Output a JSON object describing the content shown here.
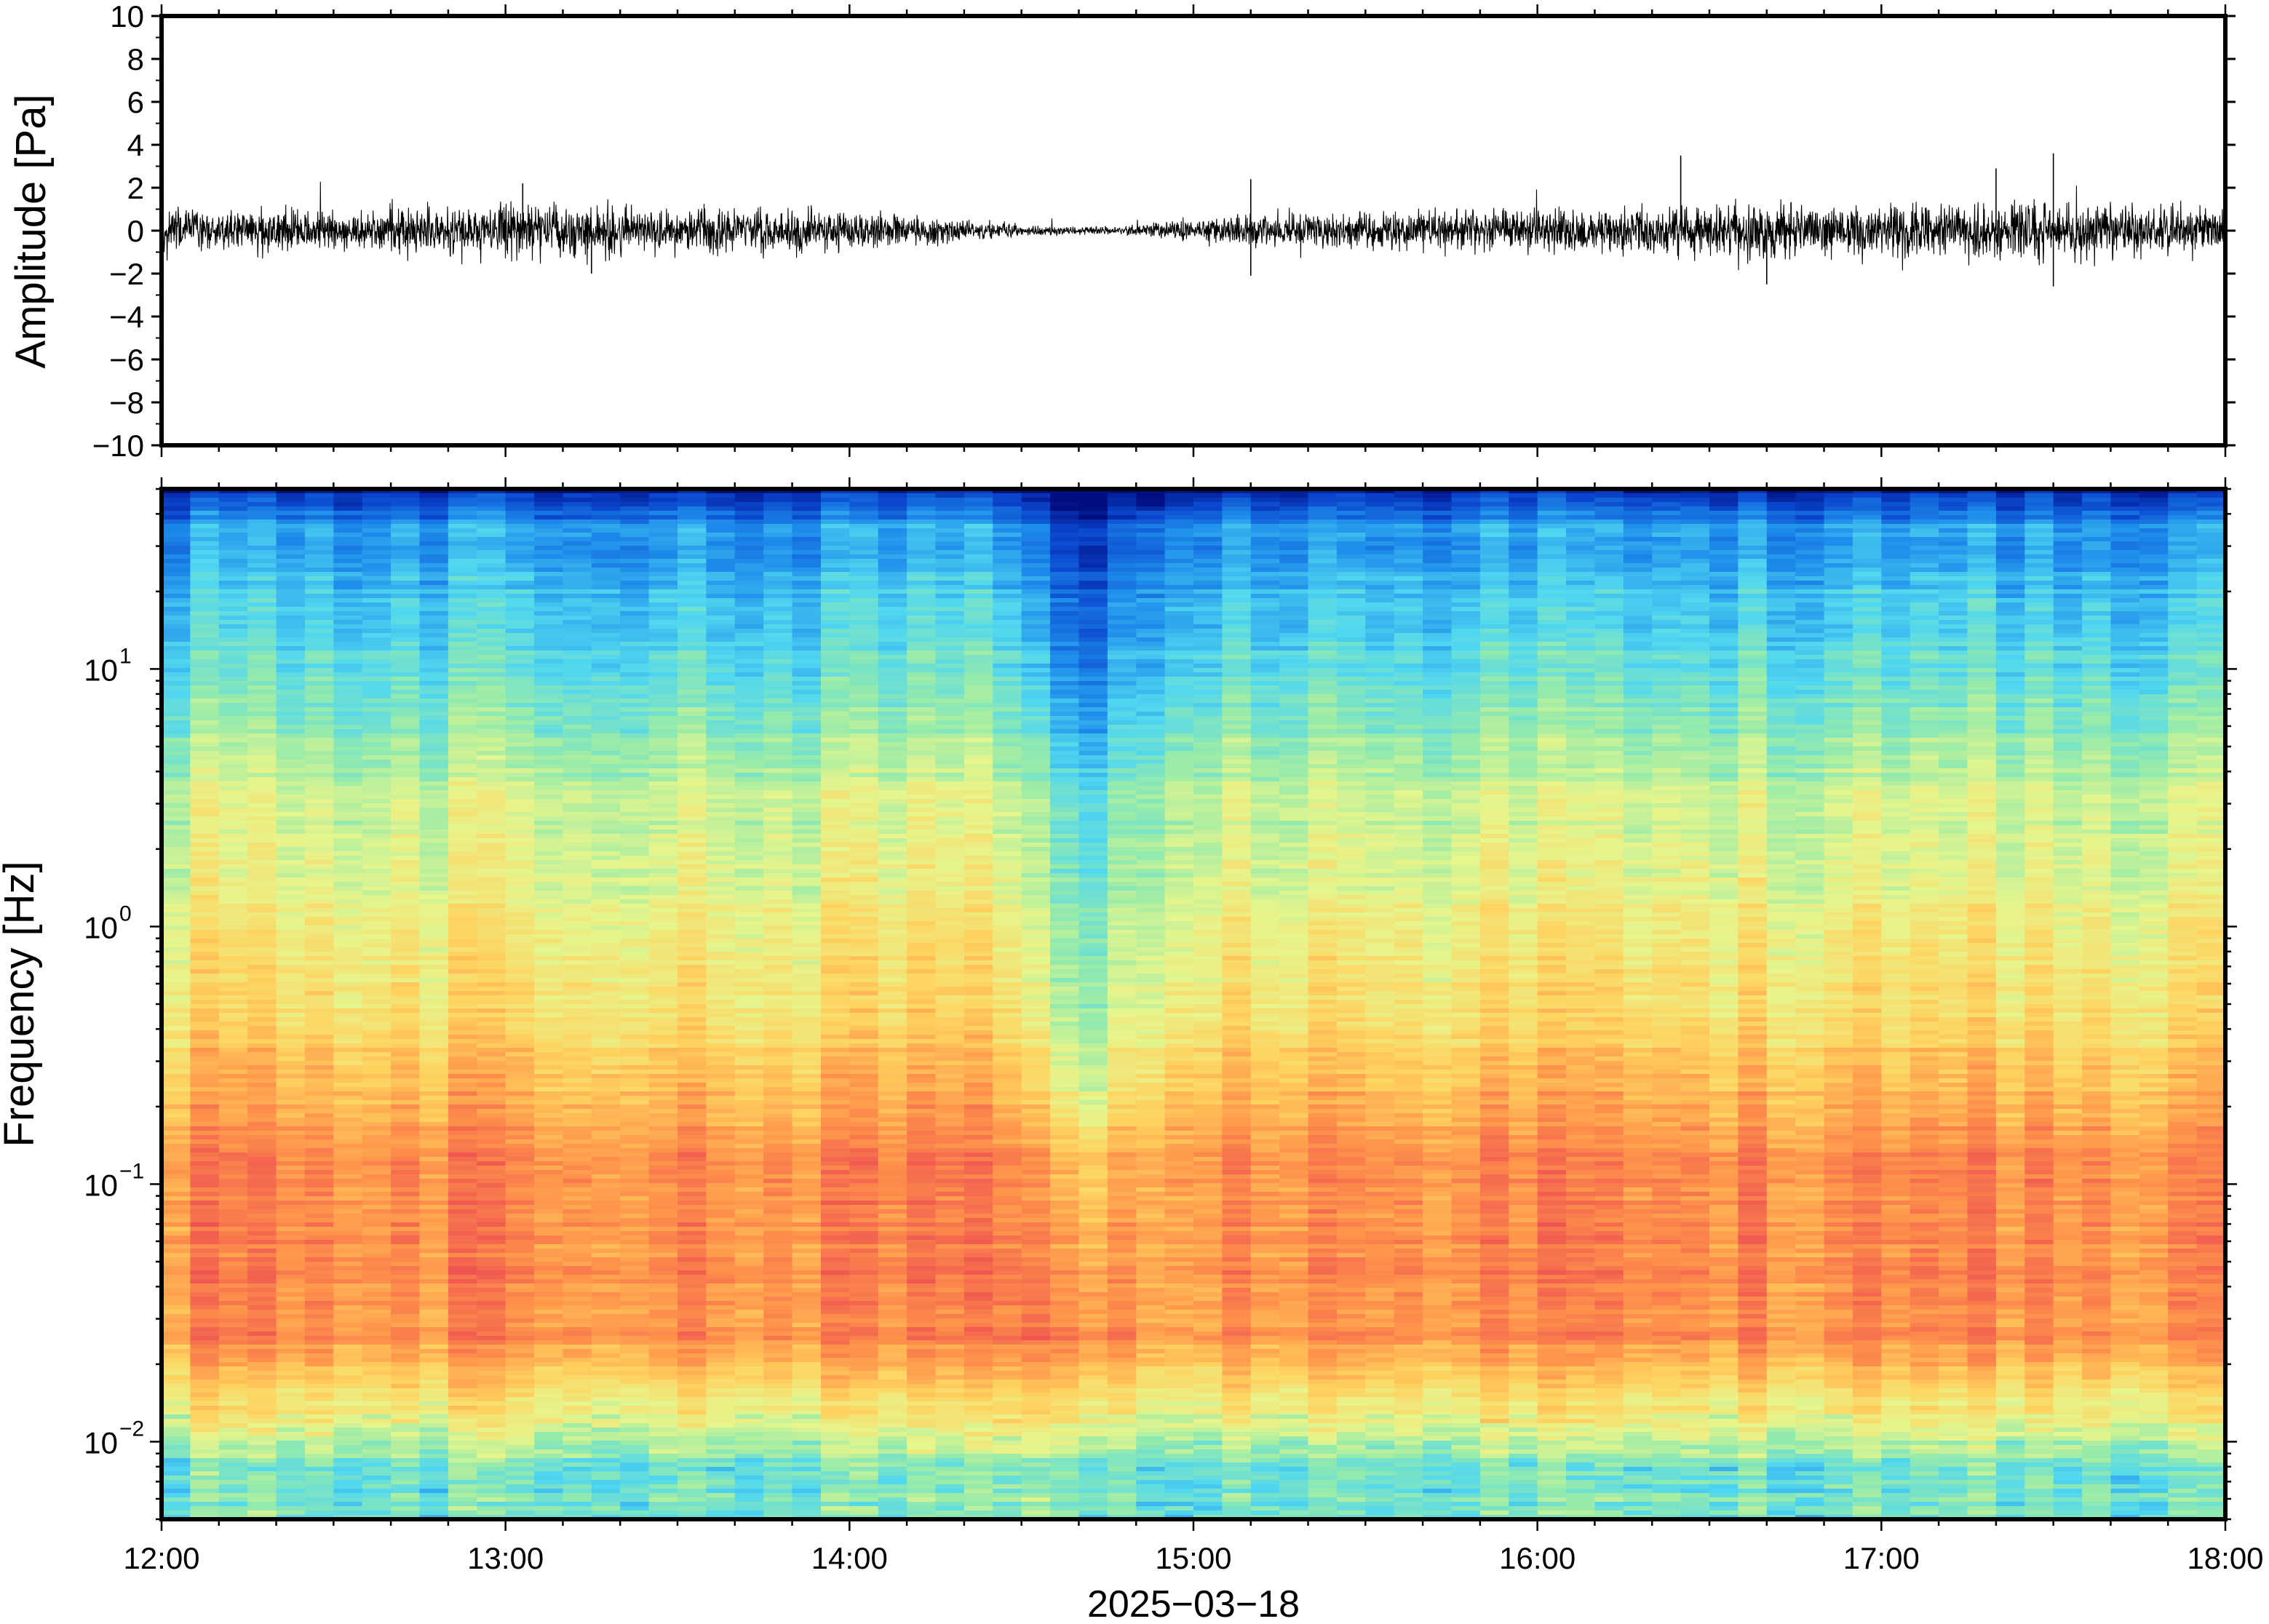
{
  "chart_data": [
    {
      "type": "line",
      "ylabel": "Amplitude [Pa]",
      "ylim": [
        -10,
        10
      ],
      "yticks": [
        "10",
        "8",
        "6",
        "4",
        "2",
        "0",
        "−2",
        "−4",
        "−6",
        "−8",
        "−10"
      ],
      "yvalues": [
        10,
        8,
        6,
        4,
        2,
        0,
        -2,
        -4,
        -6,
        -8,
        -10
      ],
      "xlim": [
        "12:00",
        "18:00"
      ],
      "grid": false,
      "envelope": {
        "x": [
          "12:00",
          "12:15",
          "12:30",
          "12:45",
          "13:00",
          "13:15",
          "13:30",
          "13:45",
          "14:00",
          "14:15",
          "14:30",
          "14:45",
          "15:00",
          "15:15",
          "15:30",
          "15:45",
          "16:00",
          "16:15",
          "16:30",
          "16:45",
          "17:00",
          "17:15",
          "17:30",
          "17:45",
          "18:00"
        ],
        "rms": [
          0.55,
          0.45,
          0.4,
          0.5,
          0.6,
          0.55,
          0.45,
          0.5,
          0.45,
          0.3,
          0.12,
          0.08,
          0.25,
          0.4,
          0.4,
          0.45,
          0.45,
          0.5,
          0.6,
          0.55,
          0.55,
          0.6,
          0.65,
          0.55,
          0.5
        ]
      },
      "spikes": [
        {
          "x": "13:03",
          "y": 2.2
        },
        {
          "x": "13:15",
          "y": -2.0
        },
        {
          "x": "15:10",
          "y": 2.4
        },
        {
          "x": "15:10",
          "y": -2.1
        },
        {
          "x": "16:25",
          "y": 3.5
        },
        {
          "x": "16:40",
          "y": -2.5
        },
        {
          "x": "17:20",
          "y": 2.9
        },
        {
          "x": "17:30",
          "y": 3.6
        },
        {
          "x": "17:30",
          "y": -2.6
        }
      ]
    },
    {
      "type": "heatmap",
      "ylabel": "Frequency [Hz]",
      "yscale": "log",
      "ylim": [
        0.005,
        50
      ],
      "yticks": [
        {
          "base": "10",
          "exp": "1",
          "value": 10
        },
        {
          "base": "10",
          "exp": "0",
          "value": 1
        },
        {
          "base": "10",
          "exp": "−1",
          "value": 0.1
        },
        {
          "base": "10",
          "exp": "−2",
          "value": 0.01
        }
      ],
      "xlabel": "2025−03−18",
      "xticks": [
        "12:00",
        "13:00",
        "14:00",
        "15:00",
        "16:00",
        "17:00",
        "18:00"
      ],
      "xlim": [
        "12:00",
        "18:00"
      ],
      "colormap": "rainbow (blue=low, red=high)",
      "quiet_period": [
        "14:30",
        "14:50"
      ],
      "time_blocks": 72,
      "grid": false
    }
  ]
}
